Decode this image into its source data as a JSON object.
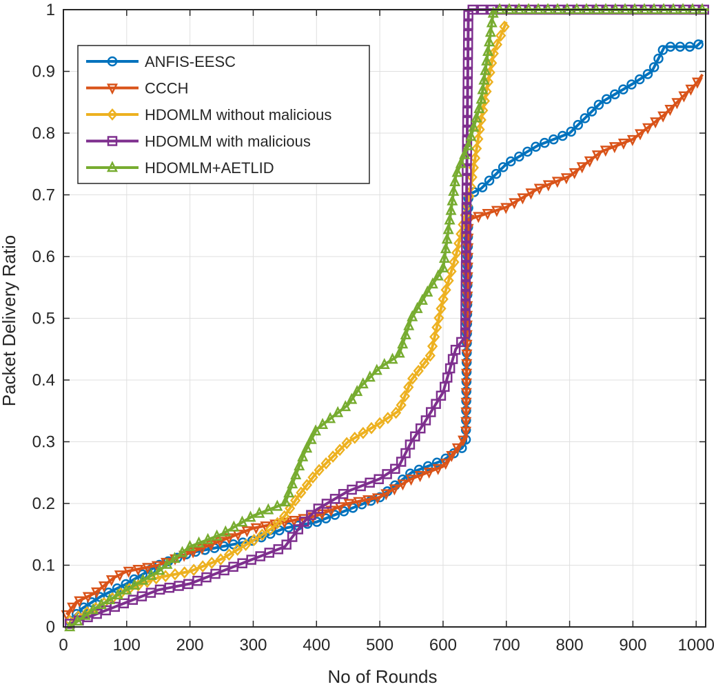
{
  "chart_data": {
    "type": "line",
    "title": "",
    "xlabel": "No of Rounds",
    "ylabel": "Packet Delivery Ratio",
    "xlim": [
      0,
      1015
    ],
    "ylim": [
      0,
      1
    ],
    "xticks": [
      0,
      100,
      200,
      300,
      400,
      500,
      600,
      700,
      800,
      900,
      1000
    ],
    "xtick_labels": [
      "0",
      "100",
      "200",
      "300",
      "400",
      "500",
      "600",
      "700",
      "800",
      "900",
      "1000"
    ],
    "yticks": [
      0,
      0.1,
      0.2,
      0.3,
      0.4,
      0.5,
      0.6,
      0.7,
      0.8,
      0.9,
      1
    ],
    "ytick_labels": [
      "0",
      "0.1",
      "0.2",
      "0.3",
      "0.4",
      "0.5",
      "0.6",
      "0.7",
      "0.8",
      "0.9",
      "1"
    ],
    "grid": true,
    "legend_position": "top-left",
    "series": [
      {
        "name": "ANFIS-EESC",
        "color": "#0072BD",
        "marker": "circle",
        "x": [
          10,
          30,
          60,
          100,
          150,
          200,
          250,
          300,
          350,
          400,
          450,
          500,
          550,
          600,
          630,
          636,
          640,
          660,
          700,
          750,
          800,
          850,
          900,
          930,
          950,
          1000,
          1010
        ],
        "y": [
          0.01,
          0.03,
          0.05,
          0.07,
          0.1,
          0.12,
          0.13,
          0.14,
          0.16,
          0.17,
          0.19,
          0.21,
          0.25,
          0.27,
          0.29,
          0.3,
          0.7,
          0.71,
          0.75,
          0.78,
          0.8,
          0.85,
          0.88,
          0.9,
          0.94,
          0.94,
          0.95
        ]
      },
      {
        "name": "CCCH",
        "color": "#D95319",
        "marker": "triangle-down",
        "x": [
          5,
          20,
          50,
          80,
          100,
          150,
          200,
          250,
          300,
          350,
          400,
          450,
          500,
          550,
          600,
          630,
          636,
          640,
          700,
          750,
          800,
          850,
          900,
          950,
          1000,
          1010
        ],
        "y": [
          0.02,
          0.04,
          0.055,
          0.08,
          0.09,
          0.1,
          0.12,
          0.14,
          0.16,
          0.17,
          0.18,
          0.2,
          0.21,
          0.24,
          0.26,
          0.3,
          0.31,
          0.66,
          0.68,
          0.71,
          0.73,
          0.77,
          0.79,
          0.83,
          0.88,
          0.895
        ]
      },
      {
        "name": "HDOMLM without malicious",
        "color": "#EDB120",
        "marker": "diamond",
        "x": [
          10,
          50,
          100,
          150,
          200,
          250,
          300,
          330,
          350,
          370,
          400,
          450,
          500,
          530,
          550,
          580,
          600,
          620,
          640,
          660,
          680,
          700
        ],
        "y": [
          0.01,
          0.03,
          0.06,
          0.08,
          0.09,
          0.11,
          0.14,
          0.16,
          0.18,
          0.21,
          0.25,
          0.3,
          0.33,
          0.35,
          0.4,
          0.44,
          0.53,
          0.6,
          0.69,
          0.82,
          0.93,
          0.98
        ]
      },
      {
        "name": "HDOMLM with malicious",
        "color": "#7E2F8E",
        "marker": "square",
        "x": [
          10,
          50,
          100,
          150,
          200,
          250,
          300,
          350,
          380,
          400,
          450,
          500,
          530,
          550,
          570,
          600,
          620,
          635,
          640,
          650,
          1020
        ],
        "y": [
          0.005,
          0.02,
          0.04,
          0.06,
          0.07,
          0.09,
          0.11,
          0.13,
          0.17,
          0.19,
          0.22,
          0.24,
          0.26,
          0.3,
          0.33,
          0.38,
          0.45,
          0.47,
          1.0,
          1.0,
          1.0
        ]
      },
      {
        "name": "HDOMLM+AETLID",
        "color": "#77AC30",
        "marker": "triangle-up",
        "x": [
          10,
          50,
          100,
          150,
          200,
          250,
          300,
          350,
          380,
          400,
          450,
          470,
          500,
          530,
          550,
          580,
          600,
          620,
          640,
          660,
          680,
          700,
          1020
        ],
        "y": [
          0.0,
          0.03,
          0.06,
          0.09,
          0.13,
          0.15,
          0.18,
          0.2,
          0.28,
          0.32,
          0.36,
          0.39,
          0.42,
          0.44,
          0.5,
          0.55,
          0.58,
          0.73,
          0.78,
          0.85,
          1.0,
          1.0,
          1.0
        ]
      }
    ]
  }
}
